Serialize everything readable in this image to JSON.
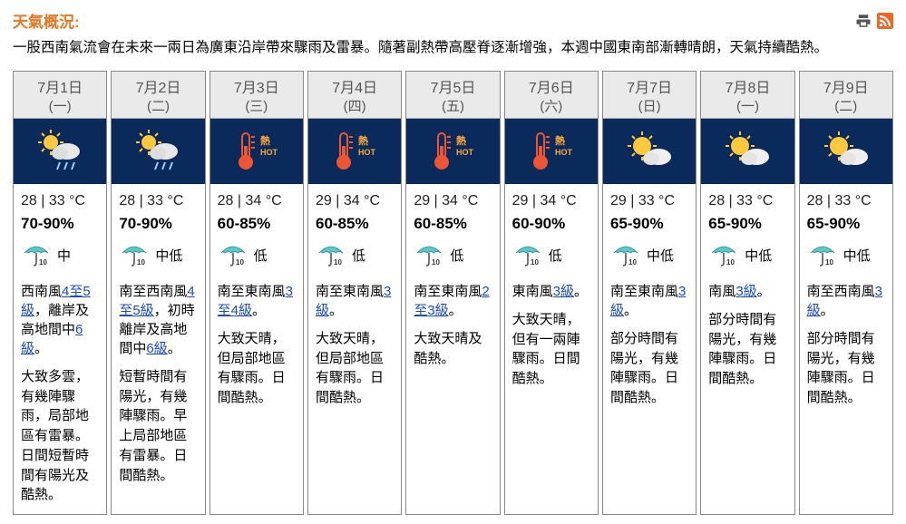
{
  "title": "天氣概況:",
  "summary": "一股西南氣流會在未來一兩日為廣東沿岸帶來驟雨及雷暴。隨著副熱帶高壓脊逐漸增強，本週中國東南部漸轉晴朗，天氣持續酷熱。",
  "colors": {
    "title": "#e87722",
    "iconBg": "#0a2a5c",
    "dateBg": "#eaeaea",
    "link": "#1a4bcc"
  },
  "days": [
    {
      "date": "7月1日",
      "dow": "(一)",
      "iconType": "sun-rain",
      "tempLo": "28",
      "tempHi": "33",
      "rh": "70-90%",
      "psr": "中",
      "windParts": [
        {
          "t": "西南風"
        },
        {
          "t": "4至5級",
          "link": true
        },
        {
          "t": "，離岸及高地間中"
        },
        {
          "t": "6級",
          "link": true
        },
        {
          "t": "。"
        }
      ],
      "desc": "大致多雲，有幾陣驟雨，局部地區有雷暴。日間短暫時間有陽光及酷熱。"
    },
    {
      "date": "7月2日",
      "dow": "(二)",
      "iconType": "sun-rain",
      "tempLo": "28",
      "tempHi": "33",
      "rh": "70-90%",
      "psr": "中低",
      "windParts": [
        {
          "t": "南至西南風"
        },
        {
          "t": "4至5級",
          "link": true
        },
        {
          "t": "，初時離岸及高地間中"
        },
        {
          "t": "6級",
          "link": true
        },
        {
          "t": "。"
        }
      ],
      "desc": "短暫時間有陽光，有幾陣驟雨。早上局部地區有雷暴。日間酷熱。"
    },
    {
      "date": "7月3日",
      "dow": "(三)",
      "iconType": "hot",
      "tempLo": "28",
      "tempHi": "34",
      "rh": "60-85%",
      "psr": "低",
      "windParts": [
        {
          "t": "南至東南風"
        },
        {
          "t": "3至4級",
          "link": true
        },
        {
          "t": "。"
        }
      ],
      "desc": "大致天晴，但局部地區有驟雨。日間酷熱。"
    },
    {
      "date": "7月4日",
      "dow": "(四)",
      "iconType": "hot",
      "tempLo": "29",
      "tempHi": "34",
      "rh": "60-85%",
      "psr": "低",
      "windParts": [
        {
          "t": "南至東南風"
        },
        {
          "t": "3級",
          "link": true
        },
        {
          "t": "。"
        }
      ],
      "desc": "大致天晴，但局部地區有驟雨。日間酷熱。"
    },
    {
      "date": "7月5日",
      "dow": "(五)",
      "iconType": "hot",
      "tempLo": "29",
      "tempHi": "34",
      "rh": "60-85%",
      "psr": "低",
      "windParts": [
        {
          "t": "南至東南風"
        },
        {
          "t": "2至3級",
          "link": true
        },
        {
          "t": "。"
        }
      ],
      "desc": "大致天晴及酷熱。"
    },
    {
      "date": "7月6日",
      "dow": "(六)",
      "iconType": "hot",
      "tempLo": "29",
      "tempHi": "34",
      "rh": "60-90%",
      "psr": "低",
      "windParts": [
        {
          "t": "東南風"
        },
        {
          "t": "3級",
          "link": true
        },
        {
          "t": "。"
        }
      ],
      "desc": "大致天晴，但有一兩陣驟雨。日間酷熱。"
    },
    {
      "date": "7月7日",
      "dow": "(日)",
      "iconType": "sun-cloud",
      "tempLo": "29",
      "tempHi": "33",
      "rh": "65-90%",
      "psr": "中低",
      "windParts": [
        {
          "t": "南至東南風"
        },
        {
          "t": "3級",
          "link": true
        },
        {
          "t": "。"
        }
      ],
      "desc": "部分時間有陽光，有幾陣驟雨。日間酷熱。"
    },
    {
      "date": "7月8日",
      "dow": "(一)",
      "iconType": "sun-cloud",
      "tempLo": "28",
      "tempHi": "33",
      "rh": "65-90%",
      "psr": "中低",
      "windParts": [
        {
          "t": "南風"
        },
        {
          "t": "3級",
          "link": true
        },
        {
          "t": "。"
        }
      ],
      "desc": "部分時間有陽光，有幾陣驟雨。日間酷熱。"
    },
    {
      "date": "7月9日",
      "dow": "(二)",
      "iconType": "sun-cloud",
      "tempLo": "28",
      "tempHi": "33",
      "rh": "65-90%",
      "psr": "中低",
      "windParts": [
        {
          "t": "南至西南風"
        },
        {
          "t": "3級",
          "link": true
        },
        {
          "t": "。"
        }
      ],
      "desc": "部分時間有陽光，有幾陣驟雨。日間酷熱。"
    }
  ]
}
